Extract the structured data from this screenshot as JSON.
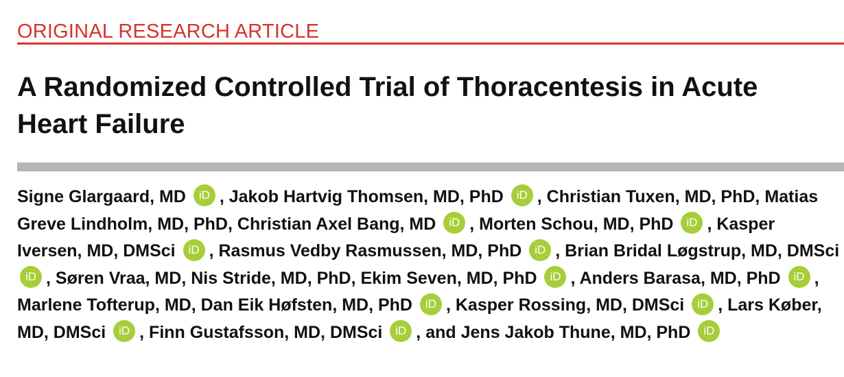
{
  "header": {
    "label": "ORIGINAL RESEARCH ARTICLE"
  },
  "title": "A Randomized Controlled Trial of Thoracentesis in Acute Heart Failure",
  "authors": [
    {
      "name": "Signe Glargaard, MD",
      "orcid": true
    },
    {
      "name": "Jakob Hartvig Thomsen, MD, PhD",
      "orcid": true
    },
    {
      "name": "Christian Tuxen, MD, PhD",
      "orcid": false
    },
    {
      "name": "Matias Greve Lindholm, MD, PhD",
      "orcid": false
    },
    {
      "name": "Christian Axel Bang, MD",
      "orcid": true
    },
    {
      "name": "Morten Schou, MD, PhD",
      "orcid": true
    },
    {
      "name": "Kasper Iversen, MD, DMSci",
      "orcid": true
    },
    {
      "name": "Rasmus Vedby Rasmussen, MD, PhD",
      "orcid": true
    },
    {
      "name": "Brian Bridal Løgstrup, MD, DMSci",
      "orcid": true
    },
    {
      "name": "Søren Vraa, MD",
      "orcid": false
    },
    {
      "name": "Nis Stride, MD, PhD",
      "orcid": false
    },
    {
      "name": "Ekim Seven, MD, PhD",
      "orcid": true
    },
    {
      "name": "Anders Barasa, MD, PhD",
      "orcid": true
    },
    {
      "name": "Marlene Tofterup, MD",
      "orcid": false
    },
    {
      "name": "Dan Eik Høfsten, MD, PhD",
      "orcid": true
    },
    {
      "name": "Kasper Rossing, MD, DMSci",
      "orcid": true
    },
    {
      "name": "Lars Køber, MD, DMSci",
      "orcid": true
    },
    {
      "name": "Finn Gustafsson, MD, DMSci",
      "orcid": true
    },
    {
      "name": "Jens Jakob Thune, MD, PhD",
      "orcid": true
    }
  ],
  "separator": ",",
  "conjunction": "and",
  "orcid_label": "iD"
}
